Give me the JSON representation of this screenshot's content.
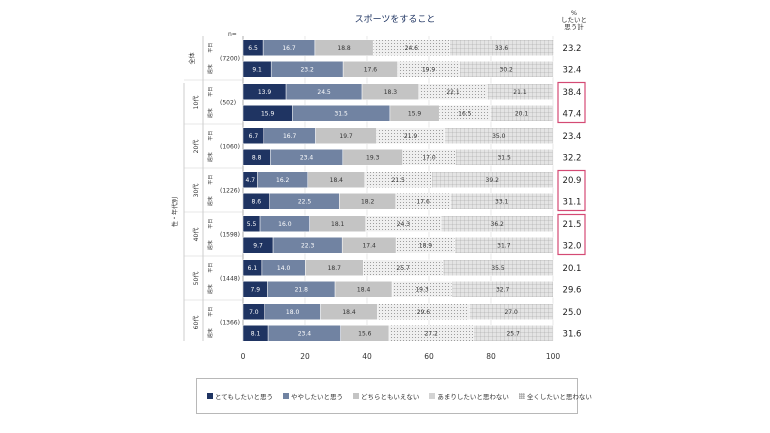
{
  "chart_data": {
    "type": "bar",
    "orientation": "horizontal-stacked",
    "title": "スポーツをすること",
    "n_label": "n=",
    "right_header": "%\nしたいと\n思う計",
    "x_ticks": [
      "0",
      "20",
      "40",
      "60",
      "80",
      "100"
    ],
    "xlim": [
      0,
      100
    ],
    "categories": [
      "とてもしたいと思う",
      "ややしたいと思う",
      "どちらともいえない",
      "あまりしたいと思わない",
      "全くしたいと思わない"
    ],
    "colors": [
      "#1f3462",
      "#7183a2",
      "#c4c4c4",
      "#ebebeb",
      "#d6d6d6"
    ],
    "patterns": [
      "solid",
      "solid",
      "solid",
      "dots",
      "grid"
    ],
    "side_label": "性・年代別",
    "groups": [
      {
        "label": "全体",
        "n": "(7200)",
        "rows": [
          {
            "sub": "平日",
            "values": [
              6.5,
              16.7,
              18.8,
              24.6,
              33.6
            ],
            "total": "23.2",
            "highlight": false
          },
          {
            "sub": "週末",
            "values": [
              9.1,
              23.2,
              17.6,
              19.9,
              30.2
            ],
            "total": "32.4",
            "highlight": false
          }
        ]
      },
      {
        "label": "10代",
        "n": "(502)",
        "rows": [
          {
            "sub": "平日",
            "values": [
              13.9,
              24.5,
              18.3,
              22.1,
              21.1
            ],
            "total": "38.4",
            "highlight": true
          },
          {
            "sub": "週末",
            "values": [
              15.9,
              31.5,
              15.9,
              16.5,
              20.1
            ],
            "total": "47.4",
            "highlight": true
          }
        ]
      },
      {
        "label": "20代",
        "n": "(1060)",
        "rows": [
          {
            "sub": "平日",
            "values": [
              6.7,
              16.7,
              19.7,
              21.9,
              35.0
            ],
            "total": "23.4",
            "highlight": false
          },
          {
            "sub": "週末",
            "values": [
              8.8,
              23.4,
              19.3,
              17.0,
              31.5
            ],
            "total": "32.2",
            "highlight": false
          }
        ]
      },
      {
        "label": "30代",
        "n": "(1226)",
        "rows": [
          {
            "sub": "平日",
            "values": [
              4.7,
              16.2,
              18.4,
              21.5,
              39.2
            ],
            "total": "20.9",
            "highlight": true
          },
          {
            "sub": "週末",
            "values": [
              8.6,
              22.5,
              18.2,
              17.6,
              33.1
            ],
            "total": "31.1",
            "highlight": true
          }
        ]
      },
      {
        "label": "40代",
        "n": "(1598)",
        "rows": [
          {
            "sub": "平日",
            "values": [
              5.5,
              16.0,
              18.1,
              24.3,
              36.2
            ],
            "total": "21.5",
            "highlight": true
          },
          {
            "sub": "週末",
            "values": [
              9.7,
              22.3,
              17.4,
              18.9,
              31.7
            ],
            "total": "32.0",
            "highlight": true
          }
        ]
      },
      {
        "label": "50代",
        "n": "(1448)",
        "rows": [
          {
            "sub": "平日",
            "values": [
              6.1,
              14.0,
              18.7,
              25.7,
              35.5
            ],
            "total": "20.1",
            "highlight": false
          },
          {
            "sub": "週末",
            "values": [
              7.9,
              21.8,
              18.4,
              19.3,
              32.7
            ],
            "total": "29.6",
            "highlight": false
          }
        ]
      },
      {
        "label": "60代",
        "n": "(1366)",
        "rows": [
          {
            "sub": "平日",
            "values": [
              7.0,
              18.0,
              18.4,
              29.6,
              27.0
            ],
            "total": "25.0",
            "highlight": false
          },
          {
            "sub": "週末",
            "values": [
              8.1,
              23.4,
              15.6,
              27.2,
              25.7
            ],
            "total": "31.6",
            "highlight": false
          }
        ]
      }
    ]
  }
}
